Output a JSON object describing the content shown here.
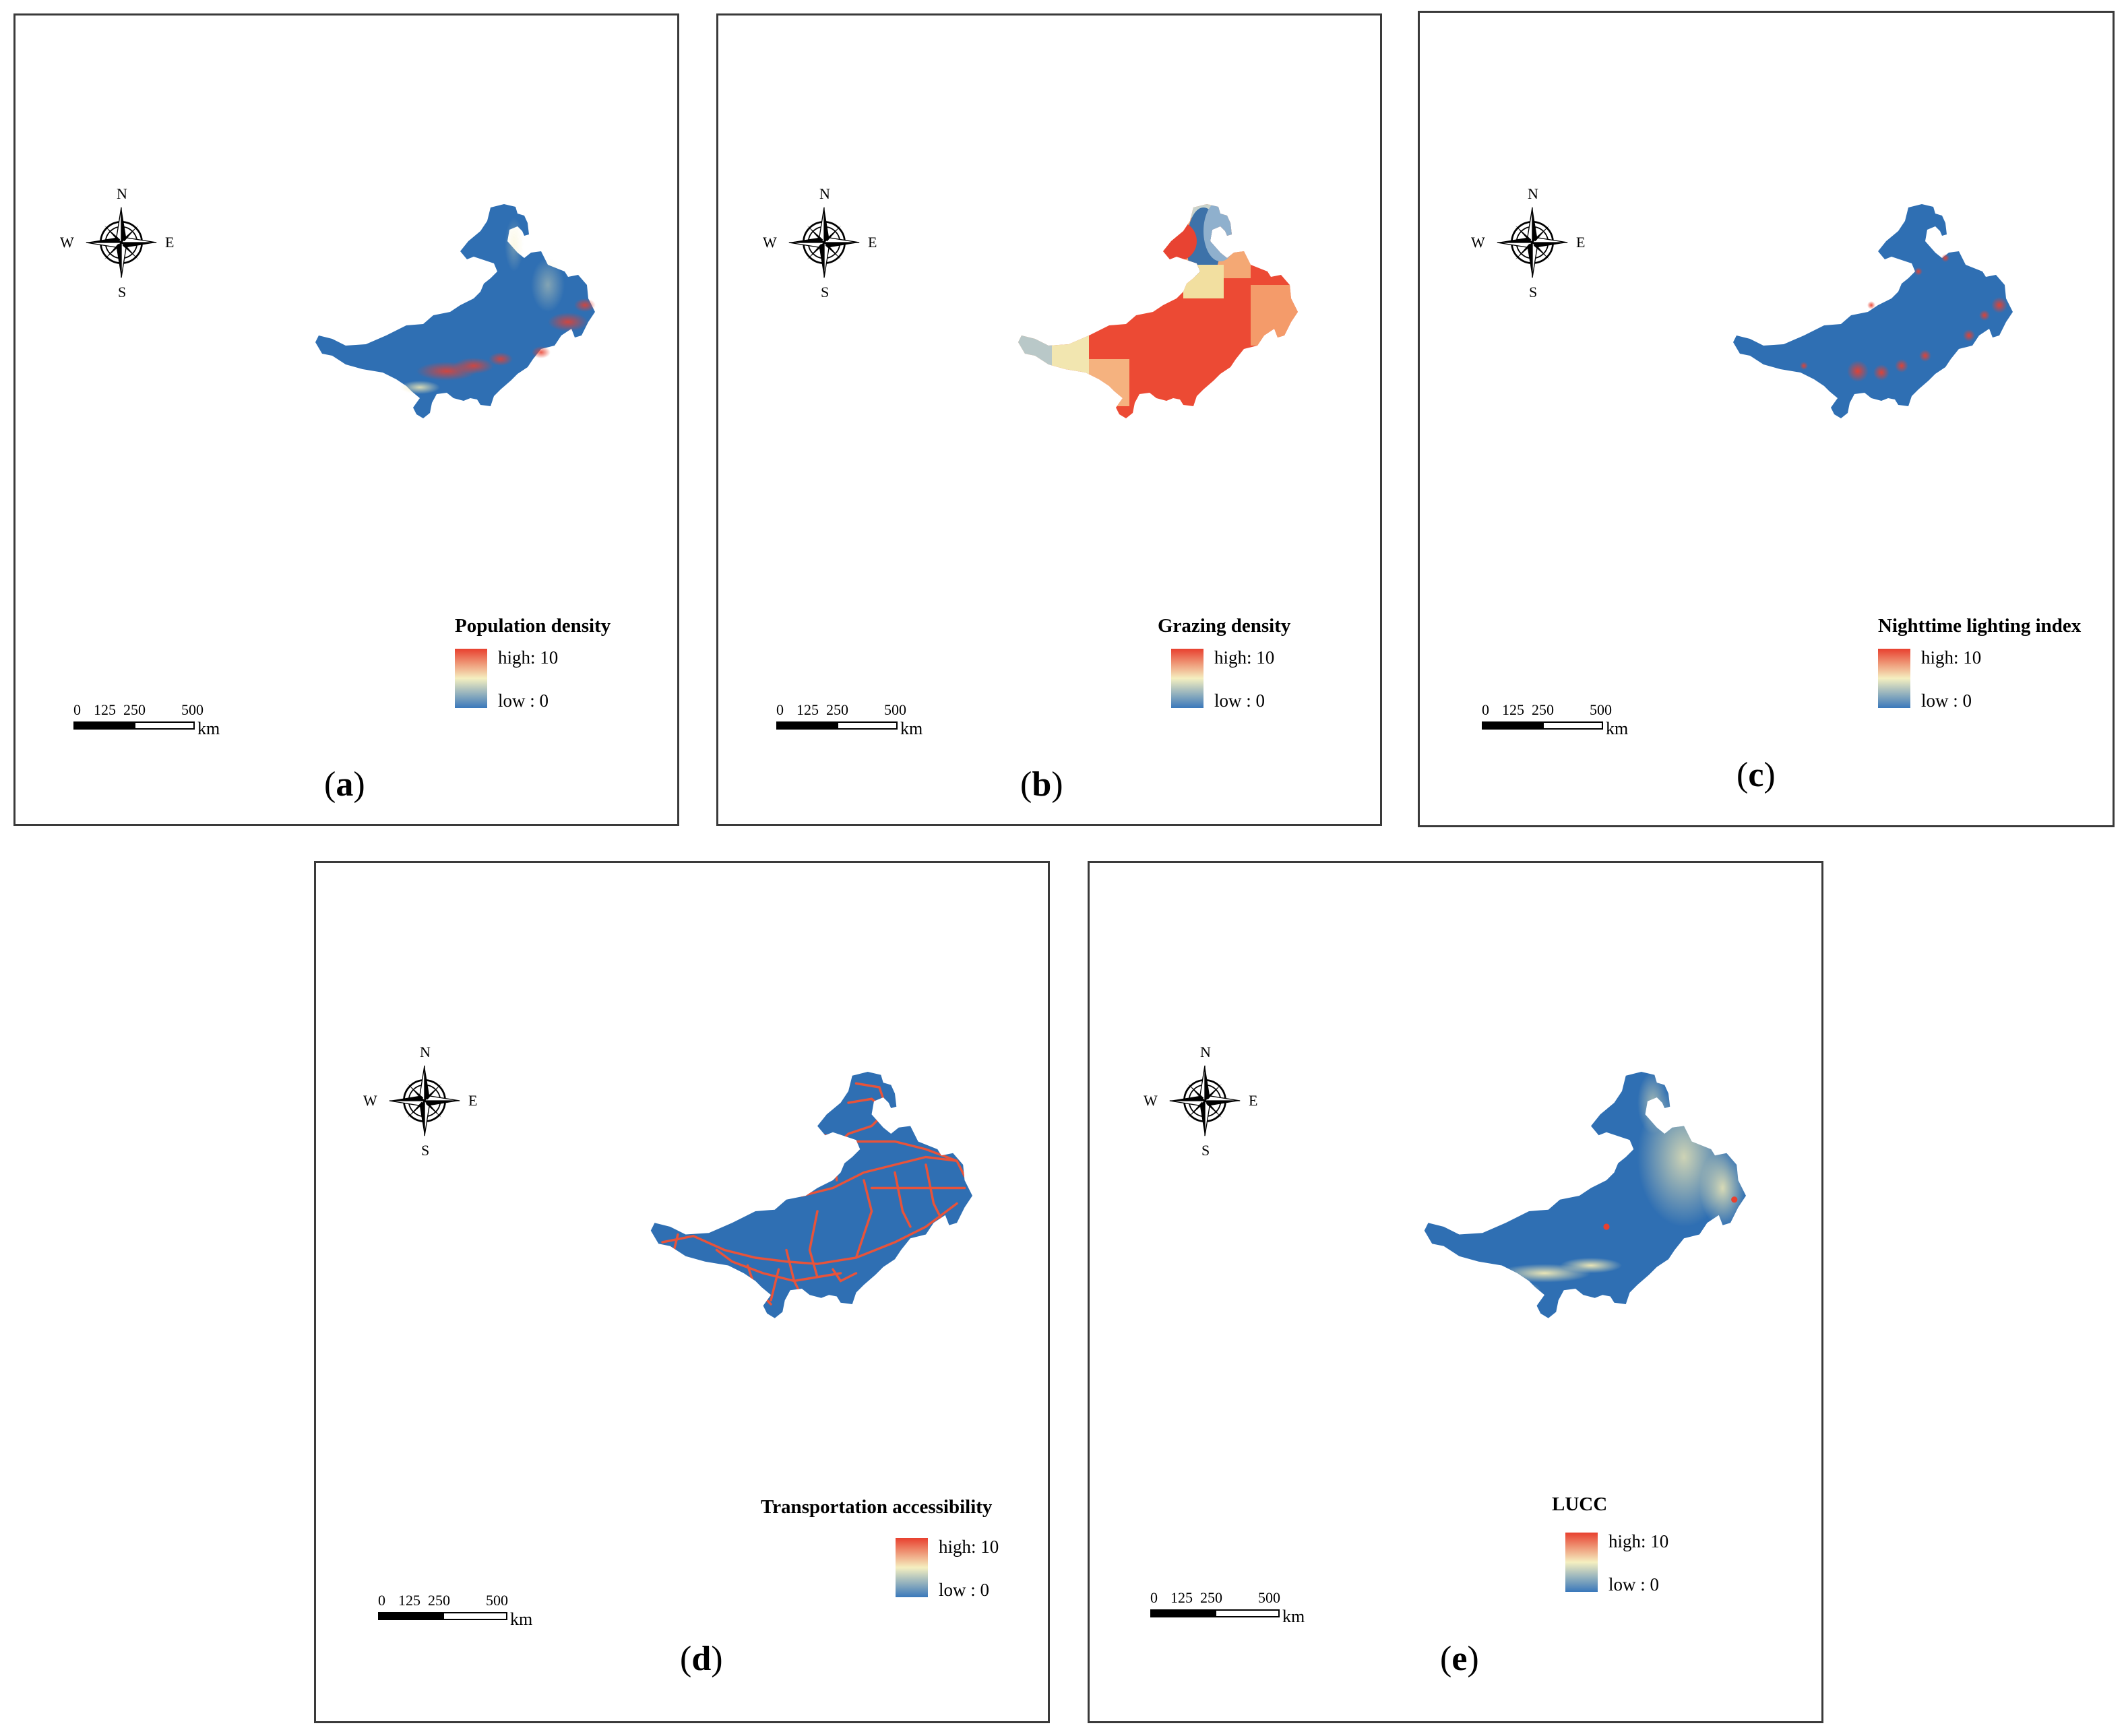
{
  "figure": {
    "panels": [
      {
        "id": "a",
        "label": "a",
        "legend_title": "Population density",
        "high_label": "high: 10",
        "low_label": "low : 0",
        "base_color": "#2f6fb3",
        "pattern": "speckle-red"
      },
      {
        "id": "b",
        "label": "b",
        "legend_title": "Grazing density",
        "high_label": "high: 10",
        "low_label": "low : 0",
        "base_color": "#ec4a34",
        "pattern": "zonal"
      },
      {
        "id": "c",
        "label": "c",
        "legend_title": "Nighttime lighting index",
        "high_label": "high: 10",
        "low_label": "low : 0",
        "base_color": "#2f6fb3",
        "pattern": "spots-red"
      },
      {
        "id": "d",
        "label": "d",
        "legend_title": "Transportation accessibility",
        "high_label": "high: 10",
        "low_label": "low : 0",
        "base_color": "#2f6fb3",
        "pattern": "roads"
      },
      {
        "id": "e",
        "label": "e",
        "legend_title": "LUCC",
        "high_label": "high: 10",
        "low_label": "low : 0",
        "base_color": "#2f6fb3",
        "pattern": "speckle-yellow"
      }
    ],
    "compass": {
      "n": "N",
      "s": "S",
      "e": "E",
      "w": "W"
    },
    "scalebar": {
      "ticks": [
        "0",
        "125",
        "250",
        "500"
      ],
      "unit": "km"
    },
    "colors": {
      "ramp_high": "#e8402f",
      "ramp_mid": "#f5efc0",
      "ramp_low": "#3a78bb",
      "land_blue": "#2f6fb3"
    }
  }
}
